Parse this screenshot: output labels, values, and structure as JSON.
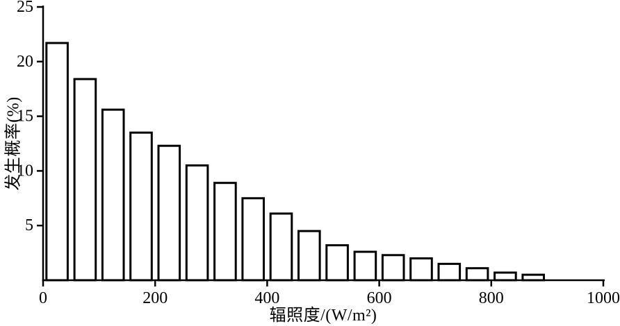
{
  "chart_data": {
    "type": "bar",
    "title": "",
    "xlabel": "辐照度/(W/m²)",
    "ylabel": "发生概率(%)",
    "xlim": [
      0,
      1000
    ],
    "ylim": [
      0,
      25
    ],
    "xticks": [
      0,
      200,
      400,
      600,
      800,
      1000
    ],
    "yticks": [
      5,
      10,
      15,
      20,
      25
    ],
    "bin_width": 50,
    "bin_centers": [
      25,
      75,
      125,
      175,
      225,
      275,
      325,
      375,
      425,
      475,
      525,
      575,
      625,
      675,
      725,
      775,
      825,
      875
    ],
    "values": [
      21.7,
      18.4,
      15.6,
      13.5,
      12.3,
      10.5,
      8.9,
      7.5,
      6.1,
      4.5,
      3.2,
      2.6,
      2.3,
      2.0,
      1.5,
      1.1,
      0.7,
      0.5
    ],
    "grid": false,
    "legend": false,
    "bar_fill": "#ffffff",
    "bar_stroke": "#000000",
    "axis_color": "#000000",
    "background": "#ffffff"
  }
}
